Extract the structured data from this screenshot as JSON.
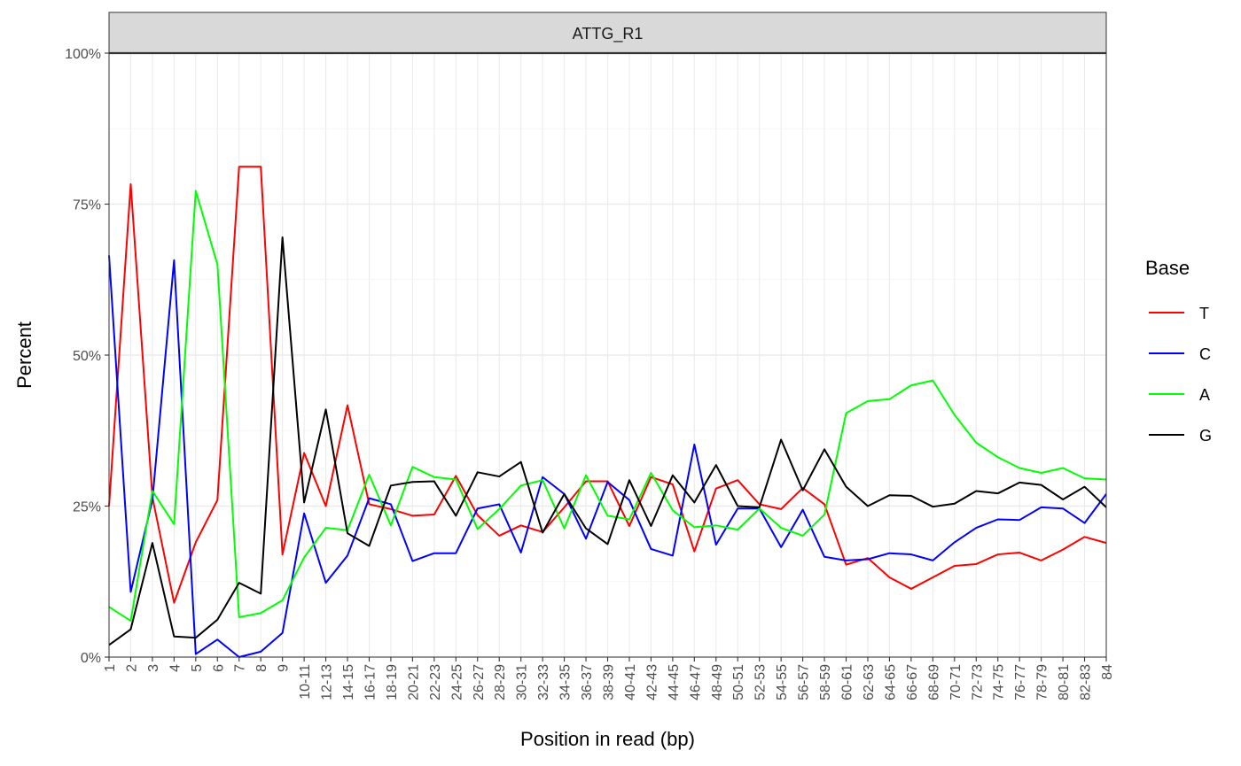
{
  "chart_data": {
    "type": "line",
    "facet_title": "ATTG_R1",
    "xlabel": "Position in read (bp)",
    "ylabel": "Percent",
    "ylim": [
      0,
      100
    ],
    "y_ticks": [
      0,
      25,
      50,
      75,
      100
    ],
    "y_tick_labels": [
      "0%",
      "25%",
      "50%",
      "75%",
      "100%"
    ],
    "grid": true,
    "legend_position": "right",
    "legend_title": "Base",
    "categories": [
      "1",
      "2",
      "3",
      "4",
      "5",
      "6",
      "7",
      "8",
      "9",
      "10-11",
      "12-13",
      "14-15",
      "16-17",
      "18-19",
      "20-21",
      "22-23",
      "24-25",
      "26-27",
      "28-29",
      "30-31",
      "32-33",
      "34-35",
      "36-37",
      "38-39",
      "40-41",
      "42-43",
      "44-45",
      "46-47",
      "48-49",
      "50-51",
      "52-53",
      "54-55",
      "56-57",
      "58-59",
      "60-61",
      "62-63",
      "64-65",
      "66-67",
      "68-69",
      "70-71",
      "72-73",
      "74-75",
      "76-77",
      "78-79",
      "80-81",
      "82-83",
      "84"
    ],
    "series": [
      {
        "name": "T",
        "color": "#ff0000",
        "values": [
          25.0,
          78.3,
          26.5,
          9.0,
          19.0,
          26.0,
          81.2,
          81.2,
          17.0,
          33.8,
          25.0,
          41.7,
          25.3,
          24.5,
          23.4,
          23.6,
          30.0,
          23.5,
          20.1,
          21.8,
          20.7,
          24.8,
          29.1,
          29.1,
          21.7,
          29.8,
          28.6,
          17.5,
          27.9,
          29.3,
          25.3,
          24.5,
          28.0,
          25.3,
          15.3,
          16.4,
          13.2,
          11.3,
          13.2,
          15.1,
          15.4,
          17.0,
          17.3,
          16.0,
          17.8,
          19.9,
          18.9
        ]
      },
      {
        "name": "C",
        "color": "#0000ff",
        "values": [
          66.5,
          10.8,
          26.0,
          65.7,
          0.5,
          2.9,
          0.0,
          0.9,
          4.0,
          23.8,
          12.3,
          16.8,
          26.3,
          25.3,
          15.9,
          17.2,
          17.2,
          24.6,
          25.3,
          17.3,
          29.8,
          27.0,
          19.6,
          29.0,
          26.0,
          17.9,
          16.8,
          35.2,
          18.6,
          24.6,
          24.6,
          18.2,
          24.4,
          16.6,
          16.0,
          16.2,
          17.2,
          17.0,
          16.0,
          19.0,
          21.4,
          22.8,
          22.7,
          24.8,
          24.6,
          22.2,
          27.0
        ]
      },
      {
        "name": "A",
        "color": "#00ff00",
        "values": [
          8.3,
          6.0,
          27.5,
          22.0,
          77.2,
          65.0,
          6.6,
          7.3,
          9.4,
          16.5,
          21.4,
          21.0,
          30.2,
          21.8,
          31.5,
          29.8,
          29.4,
          21.2,
          24.5,
          28.4,
          29.3,
          21.3,
          30.1,
          23.4,
          22.8,
          30.5,
          24.3,
          21.5,
          21.8,
          21.1,
          24.6,
          21.4,
          20.1,
          23.6,
          40.4,
          42.4,
          42.7,
          45.0,
          45.8,
          40.1,
          35.5,
          33.1,
          31.3,
          30.5,
          31.3,
          29.6,
          29.4
        ]
      },
      {
        "name": "G",
        "color": "#000000",
        "values": [
          2.0,
          4.6,
          18.9,
          3.4,
          3.2,
          6.2,
          12.3,
          10.5,
          69.5,
          25.6,
          41.0,
          20.5,
          18.4,
          28.4,
          29.0,
          29.1,
          23.4,
          30.6,
          29.9,
          32.3,
          20.6,
          27.0,
          21.3,
          18.7,
          29.3,
          21.7,
          30.1,
          25.6,
          31.8,
          25.0,
          24.8,
          36.0,
          27.6,
          34.4,
          28.2,
          25.0,
          26.8,
          26.7,
          24.9,
          25.4,
          27.5,
          27.1,
          28.9,
          28.5,
          26.1,
          28.2,
          24.8
        ]
      }
    ]
  }
}
